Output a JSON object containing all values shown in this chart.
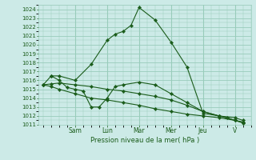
{
  "bg_color": "#cceae7",
  "grid_color": "#99ccbb",
  "line_color": "#1a5c1a",
  "marker_color": "#1a5c1a",
  "xlabel": "Pression niveau de la mer( hPa )",
  "ylim": [
    1011,
    1024.5
  ],
  "yticks": [
    1011,
    1012,
    1013,
    1014,
    1015,
    1016,
    1017,
    1018,
    1019,
    1020,
    1021,
    1022,
    1023,
    1024
  ],
  "day_labels": [
    "Sam",
    "Lun",
    "Mar",
    "Mer",
    "Jeu",
    "V"
  ],
  "day_positions": [
    2,
    4,
    6,
    8,
    10,
    12
  ],
  "xlim": [
    -0.3,
    13.0
  ],
  "series": [
    {
      "x": [
        0.0,
        0.5,
        1.0,
        2.0,
        3.0,
        4.0,
        4.5,
        5.0,
        5.5,
        6.0,
        7.0,
        8.0,
        9.0,
        10.0,
        11.0,
        12.0,
        12.5
      ],
      "y": [
        1015.5,
        1016.5,
        1016.5,
        1016.0,
        1017.8,
        1020.5,
        1021.2,
        1021.5,
        1022.2,
        1024.2,
        1022.8,
        1020.3,
        1017.5,
        1012.3,
        1012.0,
        1011.5,
        1011.3
      ]
    },
    {
      "x": [
        0.0,
        0.5,
        1.0,
        2.0,
        3.0,
        4.0,
        5.0,
        6.0,
        7.0,
        8.0,
        9.0,
        10.0,
        11.0,
        12.0,
        12.5
      ],
      "y": [
        1015.5,
        1015.6,
        1015.7,
        1015.5,
        1015.3,
        1015.0,
        1014.8,
        1014.5,
        1014.2,
        1013.8,
        1013.2,
        1012.5,
        1012.0,
        1011.8,
        1011.5
      ]
    },
    {
      "x": [
        0.0,
        0.5,
        1.0,
        2.0,
        3.0,
        4.0,
        5.0,
        6.0,
        7.0,
        8.0,
        9.0,
        10.0,
        11.0,
        12.0,
        12.5
      ],
      "y": [
        1015.5,
        1015.3,
        1015.0,
        1014.5,
        1014.0,
        1013.8,
        1013.5,
        1013.2,
        1012.8,
        1012.5,
        1012.2,
        1012.0,
        1011.8,
        1011.5,
        1011.3
      ]
    },
    {
      "x": [
        0.5,
        1.0,
        1.5,
        2.0,
        2.5,
        3.0,
        3.5,
        4.0,
        4.5,
        5.0,
        6.0,
        7.0,
        8.0,
        9.0,
        10.0,
        11.0,
        11.5,
        12.0,
        12.5
      ],
      "y": [
        1016.5,
        1016.0,
        1015.2,
        1015.0,
        1014.8,
        1013.0,
        1013.0,
        1014.0,
        1015.3,
        1015.5,
        1015.8,
        1015.5,
        1014.5,
        1013.5,
        1012.5,
        1012.0,
        1011.8,
        1011.5,
        1011.2
      ]
    }
  ]
}
